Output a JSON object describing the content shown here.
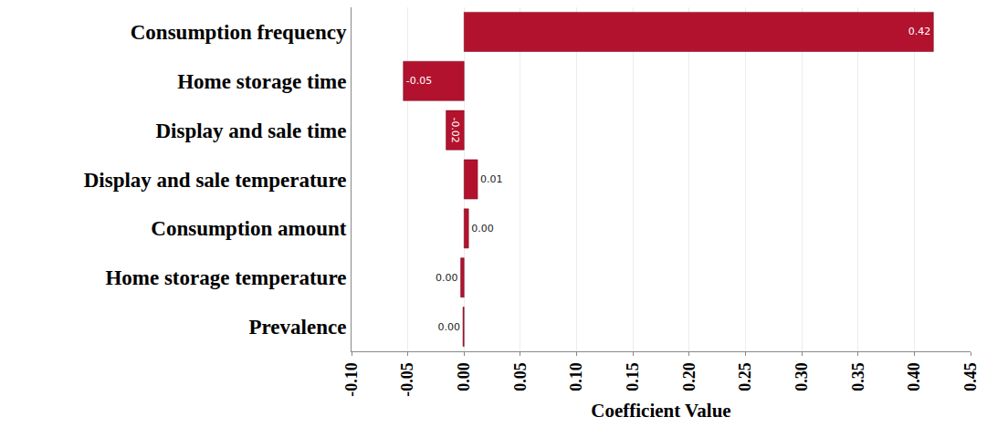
{
  "chart_data": {
    "type": "bar",
    "orientation": "horizontal",
    "categories": [
      "Consumption frequency",
      "Home storage time",
      "Display and sale time",
      "Display and sale temperature",
      "Consumption amount",
      "Home storage temperature",
      "Prevalence"
    ],
    "values": [
      0.417,
      -0.054,
      -0.016,
      0.012,
      0.004,
      -0.003,
      -0.001
    ],
    "value_labels": [
      "0.42",
      "-0.05",
      "-0.02",
      "0.01",
      "0.00",
      "0.00",
      "0.00"
    ],
    "data_labels": true,
    "color": "#b3122e",
    "x_label": "Coefficient Value",
    "xlim": [
      -0.1,
      0.45
    ],
    "xticks": [
      {
        "value": -0.1,
        "label": "-0.10"
      },
      {
        "value": -0.05,
        "label": "-0.05"
      },
      {
        "value": 0,
        "label": "0.00"
      },
      {
        "value": 0.05,
        "label": "0.05"
      },
      {
        "value": 0.1,
        "label": "0.10"
      },
      {
        "value": 0.15,
        "label": "0.15"
      },
      {
        "value": 0.2,
        "label": "0.20"
      },
      {
        "value": 0.25,
        "label": "0.25"
      },
      {
        "value": 0.3,
        "label": "0.30"
      },
      {
        "value": 0.35,
        "label": "0.35"
      },
      {
        "value": 0.4,
        "label": "0.40"
      },
      {
        "value": 0.45,
        "label": "0.45"
      }
    ],
    "grid": true
  }
}
